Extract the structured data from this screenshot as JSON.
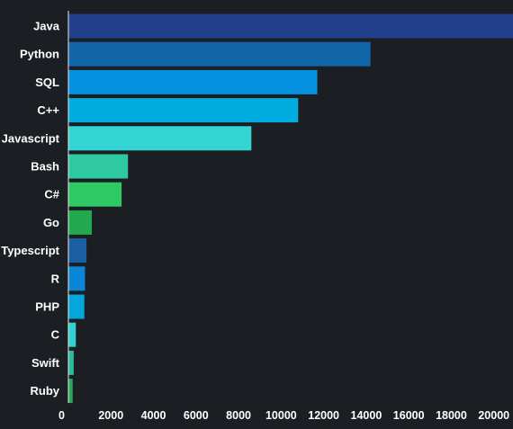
{
  "chart_data": {
    "type": "bar",
    "orientation": "horizontal",
    "title": "",
    "xlabel": "",
    "ylabel": "",
    "categories": [
      "Java",
      "Python",
      "SQL",
      "C++",
      "Javascript",
      "Bash",
      "C#",
      "Go",
      "Typescript",
      "R",
      "PHP",
      "C",
      "Swift",
      "Ruby"
    ],
    "values": [
      20900,
      14200,
      11700,
      10800,
      8600,
      2800,
      2500,
      1100,
      850,
      780,
      750,
      350,
      250,
      200
    ],
    "bar_colors": [
      "#223f8c",
      "#1265a6",
      "#0591df",
      "#00ace0",
      "#33d4d4",
      "#2fc9a0",
      "#2ec865",
      "#22a84e",
      "#1b5fa3",
      "#0b86d6",
      "#06a6dc",
      "#35cfcf",
      "#2bbd9c",
      "#2aa85a"
    ],
    "xlim": [
      0,
      20900
    ],
    "x_ticks": [
      "0",
      "2000",
      "4000",
      "6000",
      "8000",
      "10000",
      "12000",
      "14000",
      "16000",
      "18000",
      "20000"
    ],
    "x_tick_values": [
      0,
      2000,
      4000,
      6000,
      8000,
      10000,
      12000,
      14000,
      16000,
      18000,
      20000
    ],
    "grid": false,
    "legend": "none",
    "background": "#1b1e23",
    "axis_line_color": "#e8e8e8"
  }
}
